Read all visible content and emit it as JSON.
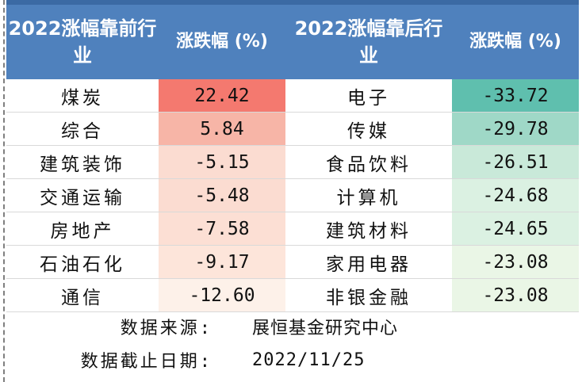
{
  "header": {
    "col1": "2022涨幅靠前行业",
    "col2": "涨跌幅 (%)",
    "col3": "2022涨幅靠后行业",
    "col4": "涨跌幅 (%)"
  },
  "rows": [
    {
      "top_industry": "煤炭",
      "top_change": "22.42",
      "bottom_industry": "电子",
      "bottom_change": "-33.72",
      "top_color": "#f4796f",
      "bottom_color": "#5fbfae"
    },
    {
      "top_industry": "综合",
      "top_change": "5.84",
      "bottom_industry": "传媒",
      "bottom_change": "-29.78",
      "top_color": "#f7b5a7",
      "bottom_color": "#9fd8c7"
    },
    {
      "top_industry": "建筑装饰",
      "top_change": "-5.15",
      "bottom_industry": "食品饮料",
      "bottom_change": "-26.51",
      "top_color": "#fbdcd1",
      "bottom_color": "#c9e9d9"
    },
    {
      "top_industry": "交通运输",
      "top_change": "-5.48",
      "bottom_industry": "计算机",
      "bottom_change": "-24.68",
      "top_color": "#fbdcd1",
      "bottom_color": "#dbf1e2"
    },
    {
      "top_industry": "房地产",
      "top_change": "-7.58",
      "bottom_industry": "建筑材料",
      "bottom_change": "-24.65",
      "top_color": "#fcdfd4",
      "bottom_color": "#dbf1e2"
    },
    {
      "top_industry": "石油石化",
      "top_change": "-9.17",
      "bottom_industry": "家用电器",
      "bottom_change": "-23.08",
      "top_color": "#fde5da",
      "bottom_color": "#eaf6e6"
    },
    {
      "top_industry": "通信",
      "top_change": "-12.60",
      "bottom_industry": "非银金融",
      "bottom_change": "-23.08",
      "top_color": "#fdf1e9",
      "bottom_color": "#eaf6e6"
    }
  ],
  "footer": {
    "source_label": "数据来源:",
    "source_value": "展恒基金研究中心",
    "date_label": "数据截止日期:",
    "date_value": "2022/11/25"
  }
}
